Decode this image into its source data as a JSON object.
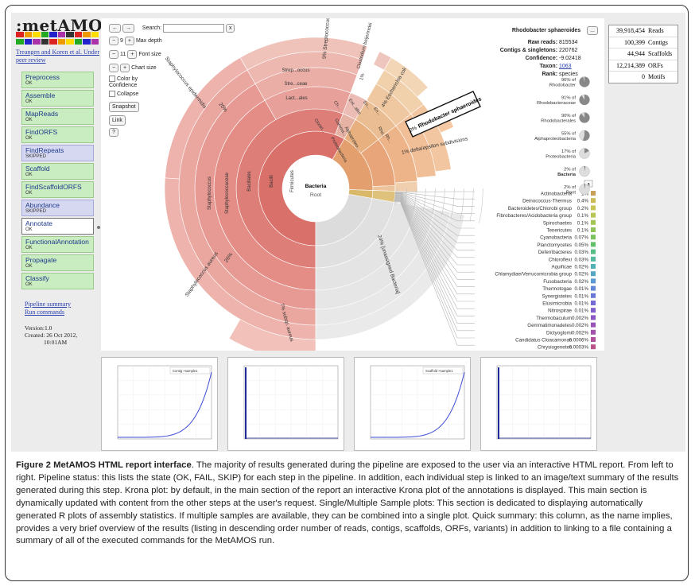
{
  "app": {
    "logo": ":metAMOS:",
    "logo_colors": [
      "#d22",
      "#e90",
      "#fd0",
      "#2a2",
      "#22c",
      "#a3a",
      "#333",
      "#d22",
      "#e90",
      "#fd0",
      "#2a2",
      "#22c",
      "#a3a",
      "#333",
      "#d22",
      "#e90",
      "#fd0",
      "#2a2",
      "#22c",
      "#a3a"
    ],
    "citation": "Treangen and Koren et al. Under peer review"
  },
  "pipeline": {
    "steps": [
      {
        "name": "Preprocess",
        "status": "OK"
      },
      {
        "name": "Assemble",
        "status": "OK"
      },
      {
        "name": "MapReads",
        "status": "OK"
      },
      {
        "name": "FindORFS",
        "status": "OK"
      },
      {
        "name": "FindRepeats",
        "status": "SKIPPED"
      },
      {
        "name": "Scaffold",
        "status": "OK"
      },
      {
        "name": "FindScaffoldORFS",
        "status": "OK"
      },
      {
        "name": "Abundance",
        "status": "SKIPPED"
      },
      {
        "name": "Annotate",
        "status": "OK"
      },
      {
        "name": "FunctionalAnnotation",
        "status": "OK"
      },
      {
        "name": "Propagate",
        "status": "OK"
      },
      {
        "name": "Classify",
        "status": "OK"
      }
    ],
    "links": [
      "Pipeline summary",
      "Run commands"
    ],
    "version": "Version:1.0",
    "created": "Created: 26 Oct 2012,",
    "created_time": "10:01AM"
  },
  "krona": {
    "back": "←",
    "forward": "→",
    "search_label": "Search:",
    "search_clear": "x",
    "minus": "−",
    "plus": "+",
    "max_depth_value": "9",
    "max_depth_label": "Max depth",
    "font_size_value": "11",
    "font_size_label": "Font size",
    "chart_size_label": "Chart size",
    "color_by_confidence": "Color by Confidence",
    "collapse": "Collapse",
    "snapshot": "Snapshot",
    "link": "Link",
    "help": "?",
    "center_title": "Bacteria",
    "center_sub": "Root",
    "ring_labels": {
      "firmicutes": "Firmicutes",
      "bacilli": "Bacilli",
      "bacillales": "Bacillales",
      "staphylococcaceae": "Staphylococcaceae",
      "staphylococcus": "Staphylococcus",
      "strep1": "Strep...occus",
      "strep2": "Stre...ceae",
      "lact": "Lact...ales",
      "clost": "Clostri...",
      "proteo": "Proteobacteria",
      "alpha": "Alphaproteo...",
      "gamma": "Gamma...",
      "ent": "Ent...ales",
      "en1": "En...",
      "en2": "En...",
      "rho": "Rho...",
      "rh": "Rh...",
      "ch": "Ch...",
      "s_epi": "Staphylococcus epidermidis",
      "s_epi_pct": "20%",
      "s_aur": "Staphylococcus aureus",
      "s_aur_pct": "26%",
      "s_sub": "7% subsp. aureus",
      "strep": "9% Streptococcus",
      "clostridium": "Clostridium beijerinckii",
      "clost_pct": "1%",
      "ecoli": "4% Escherichia coli",
      "delta": "1% delta/epsilon subdivisions",
      "unassigned": "24% [unassigned Bacteria]"
    },
    "selected": {
      "label": "Rhodobacter sphaeroides",
      "pct": "2%"
    },
    "details": {
      "title": "Rhodobacter sphaeroides",
      "btn": "...",
      "rows": [
        {
          "k": "Raw reads:",
          "v": "815534"
        },
        {
          "k": "Contigs & singletons:",
          "v": "220762"
        },
        {
          "k": "Confidence:",
          "v": "-9.02418"
        },
        {
          "k": "Taxon:",
          "v": "1063"
        },
        {
          "k": "Rank:",
          "v": "species"
        }
      ]
    },
    "lineage": [
      {
        "pct": "96% of",
        "name": "Rhodobacter",
        "fill": 0.96
      },
      {
        "pct": "91% of",
        "name": "Rhodobacteraceae",
        "fill": 0.91
      },
      {
        "pct": "90% of",
        "name": "Rhodobacterales",
        "fill": 0.9
      },
      {
        "pct": "55% of",
        "name": "Alphaproteobacteria",
        "fill": 0.55
      },
      {
        "pct": "17% of",
        "name": "Proteobacteria",
        "fill": 0.17
      },
      {
        "pct": "2% of",
        "name": "Bacteria",
        "fill": 0.02
      },
      {
        "pct": "2% of",
        "name": "Root",
        "fill": 0.02
      }
    ],
    "legend_more": "a",
    "others": [
      {
        "name": "Actinobacteria",
        "pct": "1%",
        "color": "#c9a05a"
      },
      {
        "name": "Deinococcus-Thermus",
        "pct": "0.4%",
        "color": "#cdbb55"
      },
      {
        "name": "Bacteroidetes/Chlorobi group",
        "pct": "0.2%",
        "color": "#c7c455"
      },
      {
        "name": "Fibrobacteres/Acidobacteria group",
        "pct": "0.1%",
        "color": "#b7c654"
      },
      {
        "name": "Spirochaetes",
        "pct": "0.1%",
        "color": "#a3c553"
      },
      {
        "name": "Tenericutes",
        "pct": "0.1%",
        "color": "#8ec455"
      },
      {
        "name": "Cyanobacteria",
        "pct": "0.07%",
        "color": "#78c35c"
      },
      {
        "name": "Planctomycetes",
        "pct": "0.05%",
        "color": "#62c06b"
      },
      {
        "name": "Deferribacteres",
        "pct": "0.03%",
        "color": "#56bd84"
      },
      {
        "name": "Chloroflexi",
        "pct": "0.03%",
        "color": "#53b99e"
      },
      {
        "name": "Aquificae",
        "pct": "0.02%",
        "color": "#53b2b6"
      },
      {
        "name": "Chlamydiae/Verrucomicrobia group",
        "pct": "0.02%",
        "color": "#56a6c8"
      },
      {
        "name": "Fusobacteria",
        "pct": "0.02%",
        "color": "#5b98d2"
      },
      {
        "name": "Thermotogae",
        "pct": "0.01%",
        "color": "#6188d6"
      },
      {
        "name": "Synergistetes",
        "pct": "0.01%",
        "color": "#6a78d6"
      },
      {
        "name": "Elusimicrobia",
        "pct": "0.01%",
        "color": "#746ad3"
      },
      {
        "name": "Nitrospirae",
        "pct": "0.01%",
        "color": "#805ece"
      },
      {
        "name": "Thermobaculum",
        "pct": "0.002%",
        "color": "#8d56c6"
      },
      {
        "name": "Gemmatimonadetes",
        "pct": "0.002%",
        "color": "#9a52bb"
      },
      {
        "name": "Dictyoglomi",
        "pct": "0.002%",
        "color": "#a650ad"
      },
      {
        "name": "Candidatus Cloacamonas",
        "pct": "0.0006%",
        "color": "#b1519c"
      },
      {
        "name": "Chrysiogenetes",
        "pct": "0.0003%",
        "color": "#b9548a"
      }
    ]
  },
  "summary": [
    {
      "value": "39,918,454",
      "label": "Reads"
    },
    {
      "value": "100,399",
      "label": "Contigs"
    },
    {
      "value": "44,944",
      "label": "Scaffolds"
    },
    {
      "value": "12,214,389",
      "label": "ORFs"
    },
    {
      "value": "0",
      "label": "Motifs"
    }
  ],
  "plots": [
    {
      "legend": "Contig ×sample1",
      "kind": "curve"
    },
    {
      "legend": "",
      "kind": "spike"
    },
    {
      "legend": "Scaffold ×sample1",
      "kind": "curve"
    },
    {
      "legend": "",
      "kind": "spike"
    }
  ],
  "caption": {
    "lead": "Figure 2 MetAMOS HTML report interface",
    "text": ". The majority of results generated during the pipeline are exposed to the user via an interactive HTML report. From left to right. Pipeline status: this lists the state (OK, FAIL, SKIP) for each step in the pipeline. In addition, each individual step is linked to an image/text summary of the results generated during this step. Krona plot: by default, in the main section of the report an interactive Krona plot of the annotations is displayed. This main section is dynamically updated with content from the other steps at the user's request. Single/Multiple Sample plots: This section is dedicated to displaying automatically generated R plots of assembly statistics. If multiple samples are available, they can be combined into a single plot. Quick summary: this column, as the name implies, provides a very brief overview of the results (listing in descending order number of reads, contigs, scaffolds, ORFs, variants) in addition to linking to a file containing a summary of all of the executed commands for the MetAMOS run."
  }
}
